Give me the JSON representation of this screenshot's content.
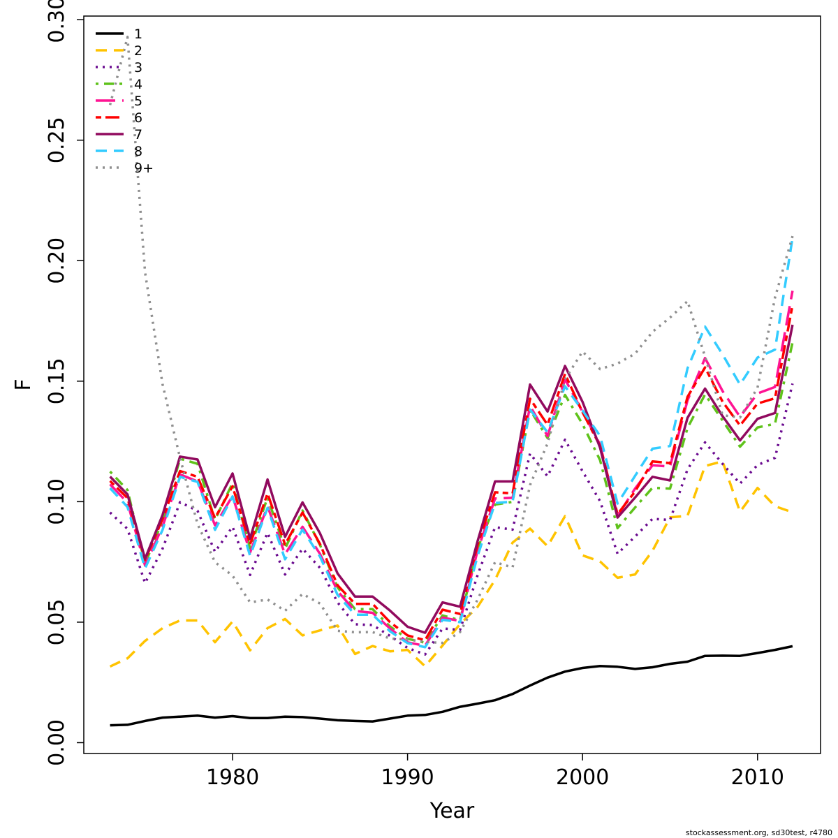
{
  "chart_data": {
    "type": "line",
    "xlabel": "Year",
    "ylabel": "F",
    "xlim": [
      1971.5,
      2013.6
    ],
    "ylim": [
      -0.0045,
      0.3015
    ],
    "xticks": [
      1980,
      1990,
      2000,
      2010
    ],
    "xtick_labels": [
      "1980",
      "1990",
      "2000",
      "2010"
    ],
    "yticks": [
      0.0,
      0.05,
      0.1,
      0.15,
      0.2,
      0.25,
      0.3
    ],
    "ytick_labels": [
      "0.00",
      "0.05",
      "0.10",
      "0.15",
      "0.20",
      "0.25",
      "0.30"
    ],
    "grid": false,
    "legend_position": "top-left",
    "credit": "stockassessment.org, sd30test, r4780",
    "x": [
      1973,
      1974,
      1975,
      1976,
      1977,
      1978,
      1979,
      1980,
      1981,
      1982,
      1983,
      1984,
      1985,
      1986,
      1987,
      1988,
      1989,
      1990,
      1991,
      1992,
      1993,
      1994,
      1995,
      1996,
      1997,
      1998,
      1999,
      2000,
      2001,
      2002,
      2003,
      2004,
      2005,
      2006,
      2007,
      2008,
      2009,
      2010,
      2011,
      2012
    ],
    "series": [
      {
        "name": "1",
        "color": "#000000",
        "dash": "solid",
        "values": [
          0.0072,
          0.0074,
          0.009,
          0.0104,
          0.0108,
          0.0112,
          0.0104,
          0.011,
          0.0102,
          0.0102,
          0.0108,
          0.0106,
          0.01,
          0.0093,
          0.009,
          0.0088,
          0.01,
          0.0112,
          0.0115,
          0.0128,
          0.0149,
          0.0162,
          0.0176,
          0.0202,
          0.0237,
          0.027,
          0.0295,
          0.031,
          0.0318,
          0.0315,
          0.0306,
          0.0313,
          0.0327,
          0.0336,
          0.036,
          0.0361,
          0.036,
          0.0372,
          0.0385,
          0.04
        ]
      },
      {
        "name": "2",
        "color": "#ffc300",
        "dash": "dashed",
        "values": [
          0.0316,
          0.035,
          0.0422,
          0.0475,
          0.0507,
          0.0507,
          0.0417,
          0.0503,
          0.0383,
          0.0475,
          0.0513,
          0.0445,
          0.0466,
          0.0486,
          0.0368,
          0.0401,
          0.0379,
          0.0385,
          0.0317,
          0.0403,
          0.0492,
          0.0563,
          0.0675,
          0.083,
          0.0888,
          0.0815,
          0.094,
          0.0777,
          0.0752,
          0.0684,
          0.0698,
          0.0796,
          0.0935,
          0.0941,
          0.1148,
          0.1167,
          0.0958,
          0.1057,
          0.0981,
          0.0956
        ]
      },
      {
        "name": "3",
        "color": "#6a0a8f",
        "dash": "dotted",
        "values": [
          0.0955,
          0.0887,
          0.0662,
          0.0805,
          0.0998,
          0.0962,
          0.0792,
          0.0896,
          0.0696,
          0.0871,
          0.0698,
          0.0805,
          0.0725,
          0.0582,
          0.0491,
          0.0488,
          0.0443,
          0.0393,
          0.0366,
          0.0474,
          0.0468,
          0.0694,
          0.0894,
          0.0884,
          0.12,
          0.1105,
          0.1257,
          0.1126,
          0.1002,
          0.0784,
          0.0855,
          0.0929,
          0.0924,
          0.1134,
          0.1246,
          0.1157,
          0.1075,
          0.1152,
          0.1182,
          0.149
        ]
      },
      {
        "name": "4",
        "color": "#5fc21b",
        "dash": "dashdot",
        "values": [
          0.1125,
          0.1048,
          0.0742,
          0.0922,
          0.1178,
          0.1157,
          0.0925,
          0.1077,
          0.0807,
          0.1017,
          0.0805,
          0.0963,
          0.082,
          0.0644,
          0.0554,
          0.0554,
          0.0482,
          0.0431,
          0.0415,
          0.0528,
          0.0508,
          0.0805,
          0.0988,
          0.0999,
          0.1381,
          0.1264,
          0.1443,
          0.1322,
          0.1172,
          0.089,
          0.0976,
          0.1058,
          0.1054,
          0.1306,
          0.1445,
          0.1337,
          0.1228,
          0.1308,
          0.1323,
          0.1661
        ]
      },
      {
        "name": "5",
        "color": "#ff1493",
        "dash": "longdash",
        "values": [
          0.1072,
          0.0996,
          0.0735,
          0.0897,
          0.1113,
          0.1084,
          0.0902,
          0.1024,
          0.0789,
          0.0981,
          0.0782,
          0.0896,
          0.0783,
          0.0629,
          0.0546,
          0.0539,
          0.0474,
          0.0416,
          0.0402,
          0.0519,
          0.0505,
          0.0796,
          0.1013,
          0.1016,
          0.1397,
          0.1272,
          0.1508,
          0.1373,
          0.1237,
          0.0941,
          0.1054,
          0.1151,
          0.1146,
          0.142,
          0.1596,
          0.1459,
          0.1352,
          0.1449,
          0.1476,
          0.1875
        ]
      },
      {
        "name": "6",
        "color": "#ff0000",
        "dash": "twodash",
        "values": [
          0.1086,
          0.1015,
          0.0758,
          0.0928,
          0.1127,
          0.1103,
          0.0932,
          0.1064,
          0.0823,
          0.1034,
          0.0822,
          0.0955,
          0.0824,
          0.0653,
          0.0576,
          0.0576,
          0.05,
          0.0445,
          0.0425,
          0.0552,
          0.0534,
          0.082,
          0.1039,
          0.1034,
          0.1427,
          0.1319,
          0.153,
          0.1371,
          0.1231,
          0.0948,
          0.1042,
          0.1167,
          0.116,
          0.1435,
          0.1557,
          0.1415,
          0.1316,
          0.1407,
          0.1429,
          0.1815
        ]
      },
      {
        "name": "7",
        "color": "#910a5e",
        "dash": "solid",
        "values": [
          0.1104,
          0.103,
          0.0763,
          0.0945,
          0.1187,
          0.1175,
          0.0977,
          0.1117,
          0.0847,
          0.1092,
          0.0854,
          0.0997,
          0.0868,
          0.0702,
          0.0606,
          0.0606,
          0.0548,
          0.0481,
          0.0456,
          0.0582,
          0.0564,
          0.0835,
          0.1084,
          0.1084,
          0.1486,
          0.1374,
          0.1563,
          0.1414,
          0.1224,
          0.0934,
          0.1017,
          0.1103,
          0.1088,
          0.1348,
          0.1469,
          0.1355,
          0.1254,
          0.1344,
          0.1368,
          0.1734
        ]
      },
      {
        "name": "8",
        "color": "#33ccff",
        "dash": "dashed",
        "values": [
          0.1056,
          0.0978,
          0.0723,
          0.0883,
          0.1103,
          0.1082,
          0.0883,
          0.1022,
          0.0775,
          0.0974,
          0.0761,
          0.0884,
          0.0772,
          0.0613,
          0.0531,
          0.0531,
          0.0462,
          0.0413,
          0.0396,
          0.051,
          0.05,
          0.0774,
          0.0994,
          0.1,
          0.1382,
          0.1288,
          0.1479,
          0.1378,
          0.1273,
          0.0992,
          0.1107,
          0.122,
          0.1231,
          0.1553,
          0.1726,
          0.1611,
          0.1486,
          0.1598,
          0.1631,
          0.2095
        ]
      },
      {
        "name": "9+",
        "color": "#8f8f8f",
        "dash": "dotted",
        "values": [
          0.2646,
          0.2928,
          0.1952,
          0.1487,
          0.1182,
          0.0907,
          0.0749,
          0.0693,
          0.0582,
          0.0594,
          0.0547,
          0.0617,
          0.0577,
          0.0464,
          0.0458,
          0.0459,
          0.0432,
          0.0428,
          0.0418,
          0.0414,
          0.0459,
          0.0593,
          0.0749,
          0.0727,
          0.1069,
          0.1242,
          0.1508,
          0.1623,
          0.155,
          0.1573,
          0.1614,
          0.1705,
          0.1764,
          0.1832,
          0.1602,
          0.1359,
          0.1349,
          0.1473,
          0.1847,
          0.2102
        ]
      }
    ]
  }
}
